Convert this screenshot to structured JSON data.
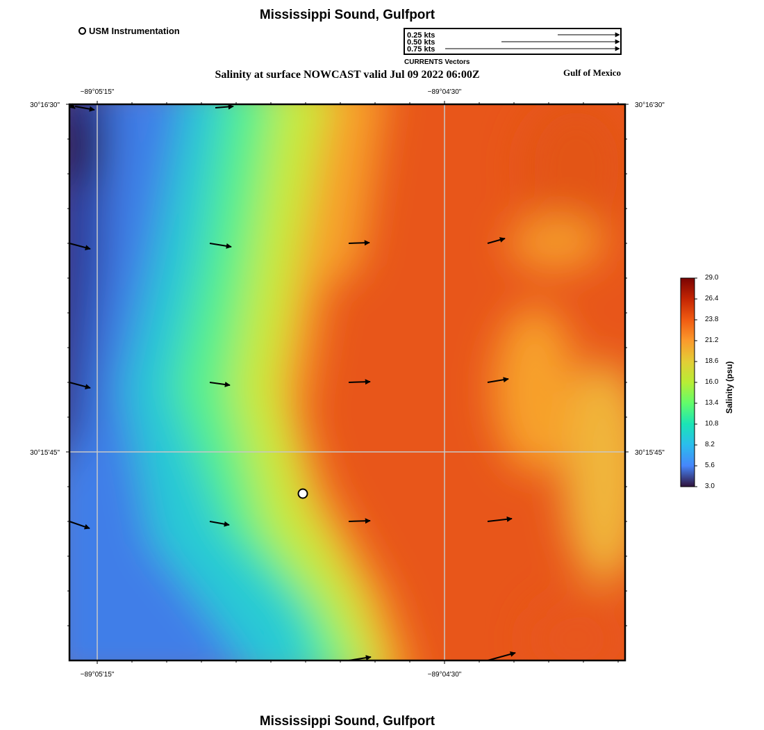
{
  "header": {
    "title": "Mississippi Sound, Gulfport",
    "subtitle": "Salinity at surface NOWCAST valid Jul 09 2022 06:00Z",
    "region_label": "Gulf of Mexico"
  },
  "footer": {
    "title": "Mississippi Sound, Gulfport"
  },
  "station_legend": {
    "label": "USM Instrumentation",
    "icon": "open-circle-icon"
  },
  "vector_legend": {
    "entries": [
      "0.25 kts",
      "0.50 kts",
      "0.75 kts"
    ],
    "caption": "CURRENTS Vectors"
  },
  "axes": {
    "top_ticks": [
      "−89°05'15\"",
      "−89°04'30\""
    ],
    "bottom_ticks": [
      "−89°05'15\"",
      "−89°04'30\""
    ],
    "left_ticks": [
      "30°16'30\"",
      "30°15'45\""
    ],
    "right_ticks": [
      "30°16'30\"",
      "30°15'45\""
    ]
  },
  "colorbar": {
    "label": "Salinity (psu)",
    "ticks": [
      "29.0",
      "26.4",
      "23.8",
      "21.2",
      "18.6",
      "16.0",
      "13.4",
      "10.8",
      "8.2",
      "5.6",
      "3.0"
    ],
    "colors": [
      "#7a0403",
      "#c42503",
      "#f05b12",
      "#fb9a2c",
      "#e3cd36",
      "#b8ed35",
      "#62fc6b",
      "#1ae4b6",
      "#2bbded",
      "#4686fb",
      "#30123b"
    ]
  },
  "map": {
    "colors": {
      "deep_blue": "#2e3c9c",
      "blue": "#3f7ee8",
      "cyan": "#28c9d5",
      "green": "#57f08a",
      "yellow": "#c8ea3a",
      "orange": "#f7a02a",
      "red_orange": "#e8561a"
    },
    "station": {
      "name": "USM Instrumentation"
    }
  }
}
